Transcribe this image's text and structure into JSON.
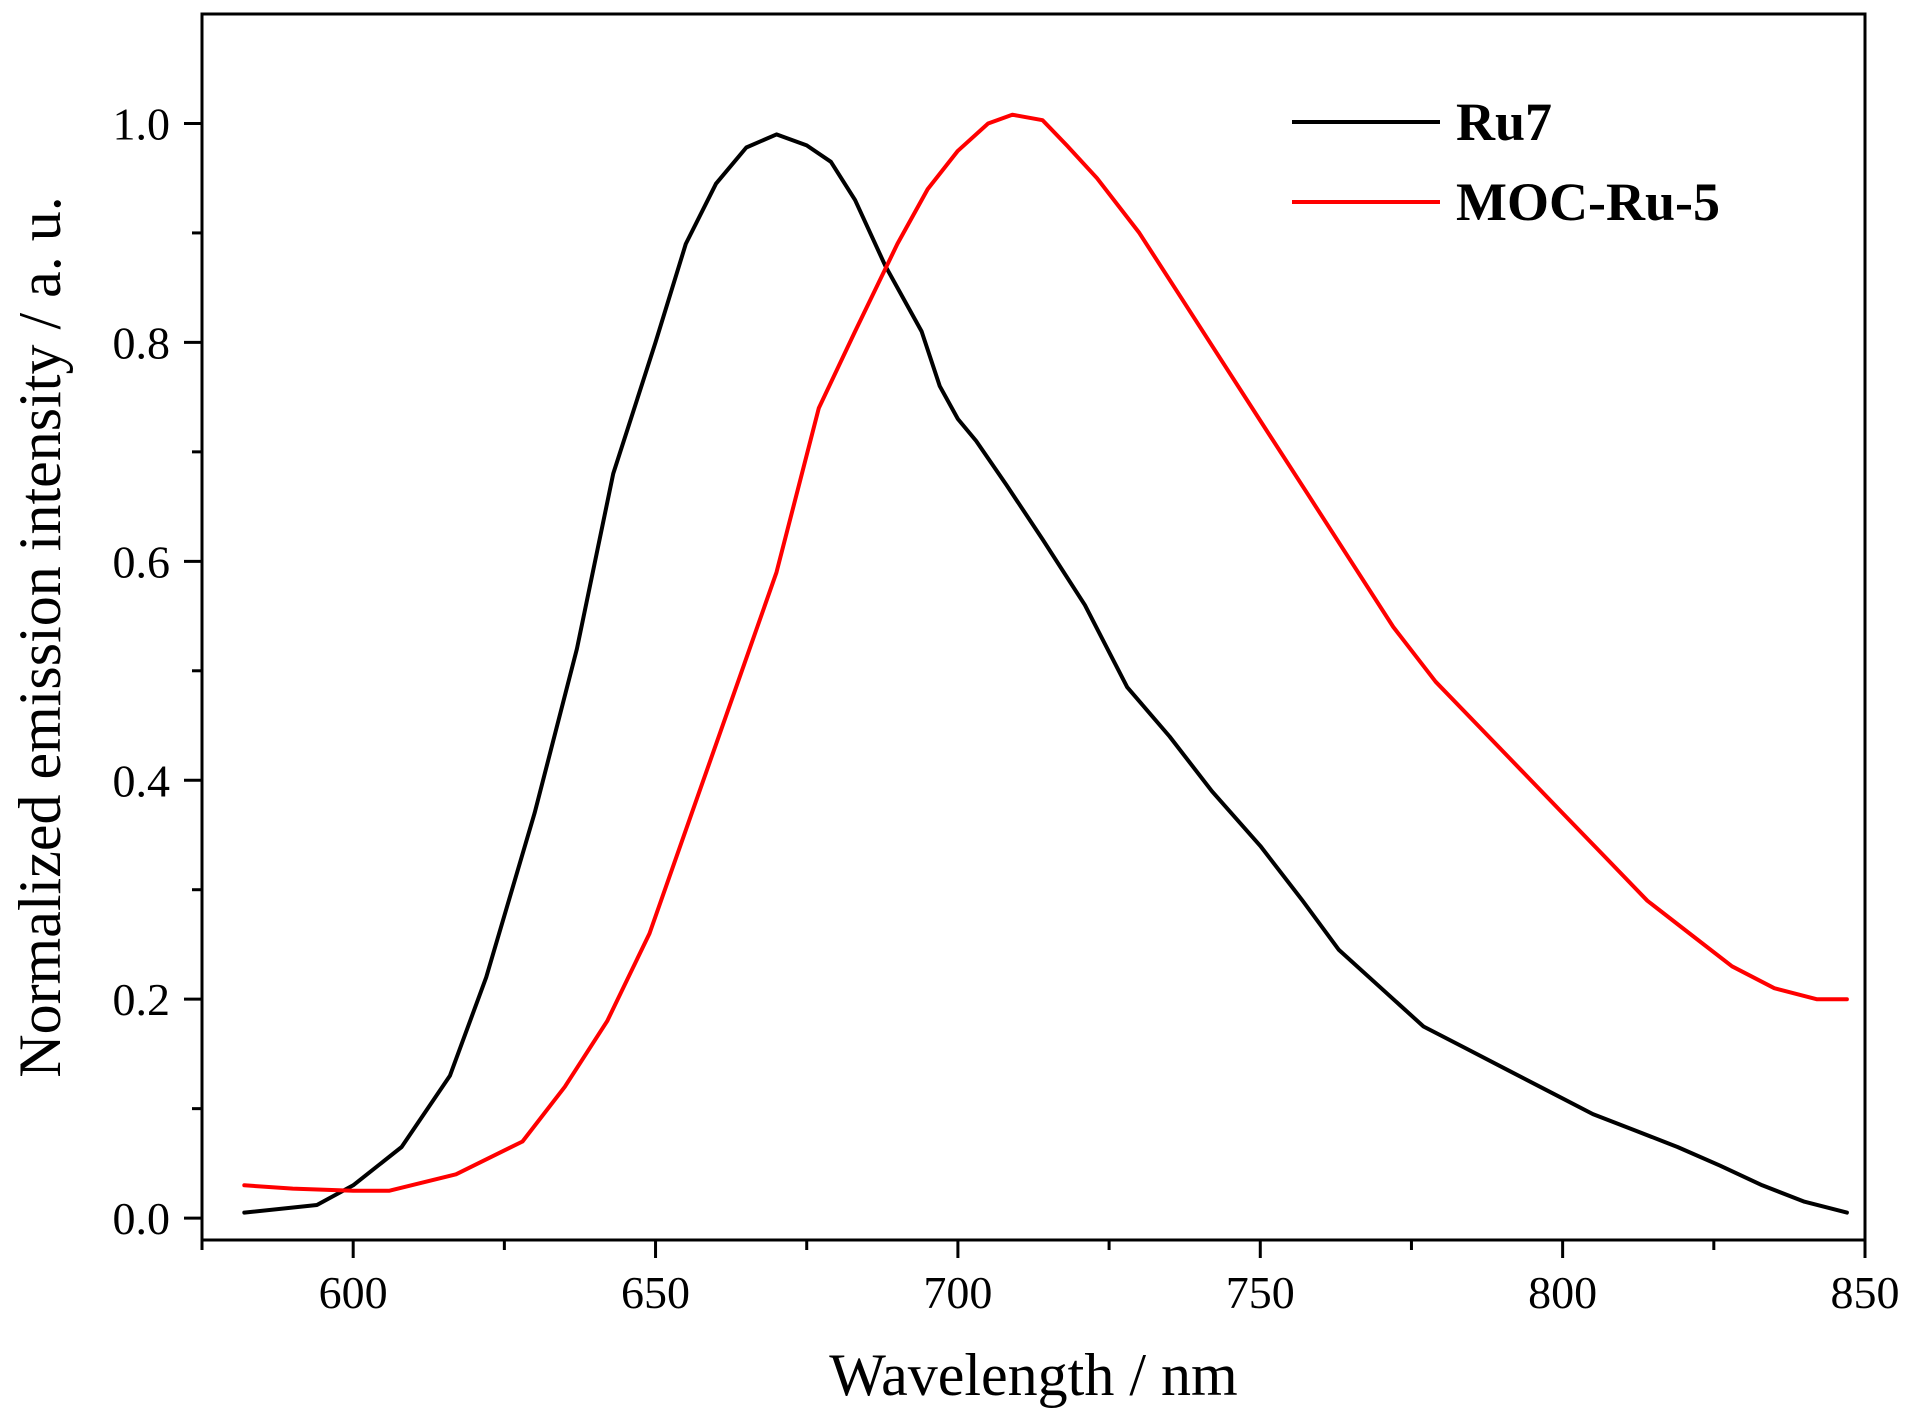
{
  "chart_data": {
    "type": "line",
    "title": "",
    "xlabel": "Wavelength / nm",
    "ylabel": "Normalized emission intensity / a. u.",
    "xlim": [
      575,
      850
    ],
    "ylim": [
      -0.02,
      1.1
    ],
    "grid": false,
    "legend_position": "top-right",
    "x_ticks": [
      600,
      650,
      700,
      750,
      800,
      850
    ],
    "x_tick_labels": [
      "600",
      "650",
      "700",
      "750",
      "800",
      "850"
    ],
    "y_ticks": [
      0.0,
      0.2,
      0.4,
      0.6,
      0.8,
      1.0
    ],
    "y_tick_labels": [
      "0.0",
      "0.2",
      "0.4",
      "0.6",
      "0.8",
      "1.0"
    ],
    "series": [
      {
        "name": "Ru7",
        "color": "#000000",
        "x": [
          582,
          594,
          600,
          608,
          616,
          622,
          630,
          637,
          643,
          650,
          655,
          660,
          665,
          670,
          675,
          679,
          683,
          688,
          694,
          697,
          700,
          703,
          708,
          714,
          721,
          728,
          735,
          742,
          750,
          757,
          763,
          770,
          777,
          784,
          791,
          798,
          805,
          812,
          819,
          826,
          833,
          840,
          847
        ],
        "y": [
          0.005,
          0.012,
          0.03,
          0.065,
          0.13,
          0.22,
          0.37,
          0.52,
          0.68,
          0.8,
          0.89,
          0.945,
          0.978,
          0.99,
          0.98,
          0.965,
          0.93,
          0.87,
          0.81,
          0.76,
          0.73,
          0.71,
          0.67,
          0.62,
          0.56,
          0.485,
          0.44,
          0.39,
          0.34,
          0.29,
          0.245,
          0.21,
          0.175,
          0.155,
          0.135,
          0.115,
          0.095,
          0.08,
          0.065,
          0.048,
          0.03,
          0.015,
          0.005
        ]
      },
      {
        "name": "MOC-Ru-5",
        "color": "#ff0000",
        "x": [
          582,
          590,
          600,
          606,
          617,
          628,
          635,
          642,
          649,
          656,
          663,
          670,
          677,
          683,
          690,
          695,
          700,
          705,
          709,
          714,
          718,
          723,
          730,
          737,
          744,
          751,
          758,
          765,
          772,
          779,
          786,
          793,
          800,
          807,
          814,
          821,
          828,
          835,
          842,
          847
        ],
        "y": [
          0.03,
          0.027,
          0.025,
          0.025,
          0.04,
          0.07,
          0.12,
          0.18,
          0.26,
          0.37,
          0.48,
          0.59,
          0.74,
          0.81,
          0.89,
          0.94,
          0.975,
          1.0,
          1.008,
          1.003,
          0.98,
          0.95,
          0.9,
          0.84,
          0.78,
          0.72,
          0.66,
          0.6,
          0.54,
          0.49,
          0.45,
          0.41,
          0.37,
          0.33,
          0.29,
          0.26,
          0.23,
          0.21,
          0.2,
          0.2
        ]
      }
    ]
  }
}
